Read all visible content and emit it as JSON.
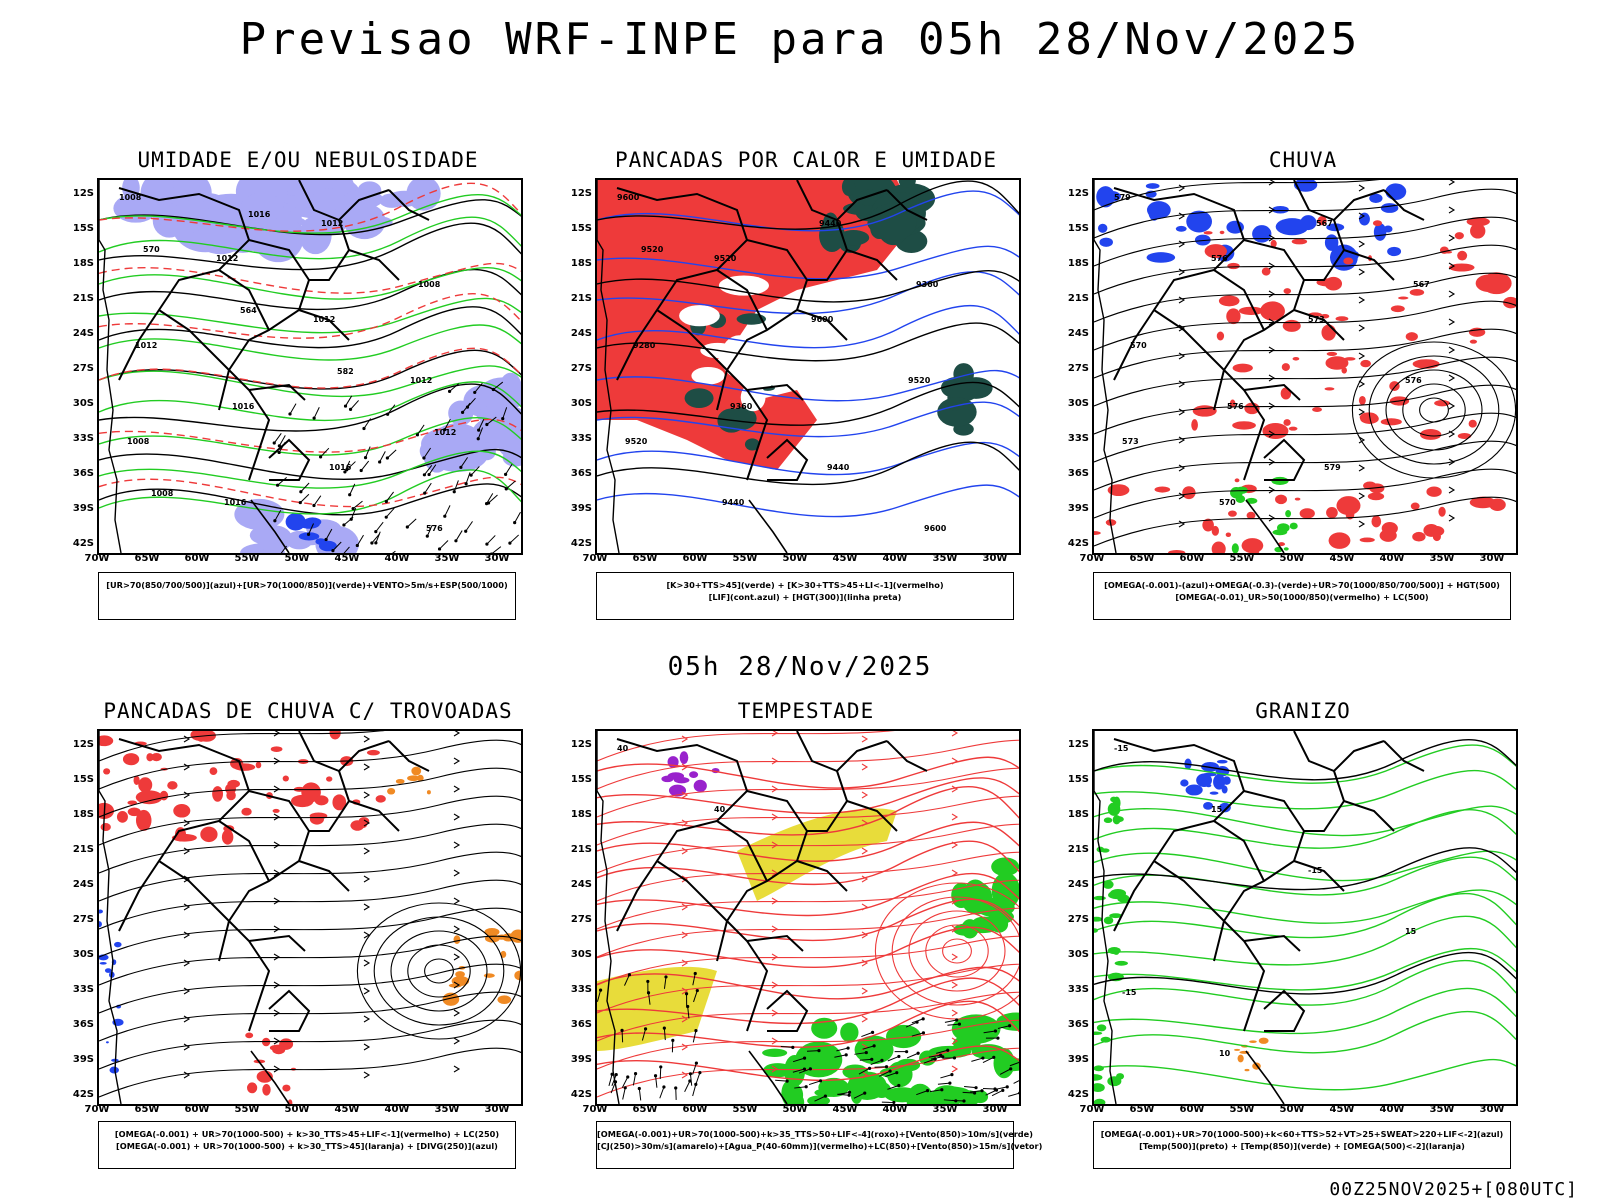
{
  "title": "Previsao WRF-INPE  para 05h 28/Nov/2025",
  "mid_title": "05h 28/Nov/2025",
  "footer": "00Z25NOV2025+[080UTC]",
  "lat_labels": [
    "12S",
    "15S",
    "18S",
    "21S",
    "24S",
    "27S",
    "30S",
    "33S",
    "36S",
    "39S",
    "42S"
  ],
  "lon_labels": [
    "70W",
    "65W",
    "60W",
    "55W",
    "50W",
    "45W",
    "40W",
    "35W",
    "30W"
  ],
  "colors": {
    "blue": "#2244ee",
    "green": "#22cc22",
    "red": "#ee3a3a",
    "lavender": "#a9a9f5",
    "darkgreen": "#1e4d45",
    "yellow": "#e8dc3a",
    "orange": "#f08a24",
    "purple": "#9922cc"
  },
  "panels": [
    {
      "id": "umidade",
      "title": "UMIDADE E/OU NEBULOSIDADE",
      "legend": [
        "[UR>70(850/700/500)](azul)+[UR>70(1000/850)](verde)+VENTO>5m/s+ESP(500/1000)"
      ],
      "contour_labels": [
        "1008",
        "1012",
        "1012",
        "1012",
        "1008",
        "1016",
        "1012",
        "1008",
        "1012",
        "1016",
        "1016",
        "576",
        "570",
        "564",
        "582",
        "1012",
        "1008",
        "1016"
      ]
    },
    {
      "id": "pancadas-calor",
      "title": "PANCADAS POR CALOR E UMIDADE",
      "legend": [
        "[K>30+TTS>45](verde) + [K>30+TTS>45+LI<-1](vermelho)",
        "[LIF](cont.azul) + [HGT(300)](linha preta)"
      ],
      "contour_labels": [
        "9600",
        "9520",
        "9600",
        "9520",
        "9520",
        "9440",
        "9440",
        "9360",
        "9280",
        "9360",
        "9440",
        "9600",
        "9520"
      ]
    },
    {
      "id": "chuva",
      "title": "CHUVA",
      "legend": [
        "[OMEGA(-0.001)-(azul)+OMEGA(-0.3)-(verde)+UR>70(1000/850/700/500)] + HGT(500)",
        "[OMEGA(-0.01)_UR>50(1000/850)(vermelho) + LC(500)"
      ],
      "contour_labels": [
        "579",
        "576",
        "573",
        "576",
        "573",
        "570",
        "567",
        "567",
        "570",
        "576",
        "579"
      ]
    },
    {
      "id": "pancadas-trovoadas",
      "title": "PANCADAS DE CHUVA C/ TROVOADAS",
      "legend": [
        "[OMEGA(-0.001) + UR>70(1000-500) + k>30_TTS>45+LIF<-1](vermelho) + LC(250)",
        "[OMEGA(-0.001) + UR>70(1000-500) + k>30_TTS>45](laranja) + [DIVG(250)](azul)"
      ],
      "contour_labels": []
    },
    {
      "id": "tempestade",
      "title": "TEMPESTADE",
      "legend": [
        "[OMEGA(-0.001)+UR>70(1000-500)+k>35_TTS>50+LIF<-4](roxo)+[Vento(850)>10m/s](verde)",
        "[CJ(250)>30m/s](amarelo)+[Agua_P(40-60mm)](vermelho)+LC(850)+[Vento(850)>15m/s](vetor)"
      ],
      "contour_labels": [
        "40",
        "40"
      ]
    },
    {
      "id": "granizo",
      "title": "GRANIZO",
      "legend": [
        "[OMEGA(-0.001)+UR>70(1000-500)+k<60+TTS>52+VT>25+SWEAT>220+LIF<-2](azul)",
        "[Temp(500)](preto) + [Temp(850)](verde) + [OMEGA(500)<-2](laranja)"
      ],
      "contour_labels": [
        "-15",
        "15",
        "-15",
        "15",
        "-15",
        "10"
      ]
    }
  ]
}
